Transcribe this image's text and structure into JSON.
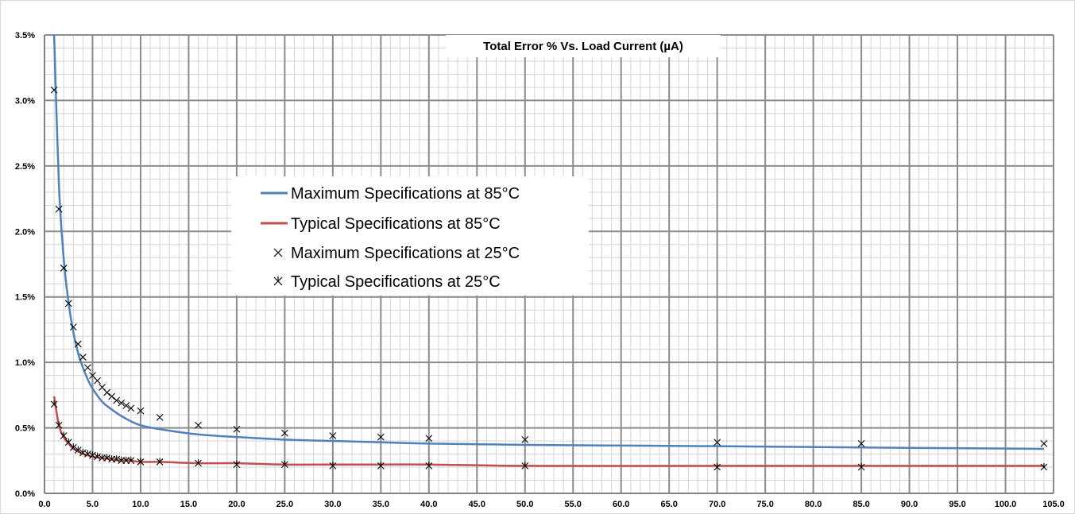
{
  "chart_data": {
    "type": "line",
    "title": "Total Error  % Vs. Load Current (µA)",
    "xlabel": "",
    "ylabel": "",
    "xlim": [
      0,
      105
    ],
    "ylim": [
      0,
      0.035
    ],
    "x_ticks": [
      0,
      5,
      10,
      15,
      20,
      25,
      30,
      35,
      40,
      45,
      50,
      55,
      60,
      65,
      70,
      75,
      80,
      85,
      90,
      95,
      100,
      105
    ],
    "x_tick_labels": [
      "0.0",
      "5.0",
      "10.0",
      "15.0",
      "20.0",
      "25.0",
      "30.0",
      "35.0",
      "40.0",
      "45.0",
      "50.0",
      "55.0",
      "60.0",
      "65.0",
      "70.0",
      "75.0",
      "80.0",
      "85.0",
      "90.0",
      "95.0",
      "100.0",
      "105.0"
    ],
    "y_ticks": [
      0,
      0.005,
      0.01,
      0.015,
      0.02,
      0.025,
      0.03,
      0.035
    ],
    "y_tick_labels": [
      "0.0%",
      "0.5%",
      "1.0%",
      "1.5%",
      "2.0%",
      "2.5%",
      "3.0%",
      "3.5%"
    ],
    "grid": true,
    "minor_grid": true,
    "legend_position": "center-left",
    "series": [
      {
        "name": "Maximum Specifications at 85°C",
        "kind": "line",
        "color": "#4f81bd",
        "x": [
          1,
          1.5,
          2,
          2.5,
          3,
          3.5,
          4,
          4.5,
          5,
          6,
          7,
          8,
          9,
          10,
          12,
          16,
          20,
          25,
          30,
          35,
          40,
          50,
          70,
          85,
          104
        ],
        "y": [
          0.035,
          0.0236,
          0.0179,
          0.0146,
          0.0123,
          0.0107,
          0.0096,
          0.0087,
          0.008,
          0.007,
          0.0064,
          0.0059,
          0.0055,
          0.0052,
          0.0049,
          0.0045,
          0.0043,
          0.0041,
          0.004,
          0.0039,
          0.0038,
          0.0037,
          0.0036,
          0.0035,
          0.0034
        ]
      },
      {
        "name": "Typical Specifications at 85°C",
        "kind": "line",
        "color": "#c0504d",
        "x": [
          1,
          1.5,
          2,
          2.5,
          3,
          3.5,
          4,
          4.5,
          5,
          6,
          7,
          8,
          9,
          10,
          12,
          16,
          20,
          25,
          30,
          35,
          40,
          50,
          70,
          85,
          104
        ],
        "y": [
          0.0074,
          0.0052,
          0.0043,
          0.0038,
          0.0034,
          0.0032,
          0.003,
          0.0029,
          0.0028,
          0.0027,
          0.0026,
          0.0025,
          0.0025,
          0.0024,
          0.0024,
          0.0023,
          0.0023,
          0.0022,
          0.0022,
          0.0022,
          0.0022,
          0.0021,
          0.0021,
          0.0021,
          0.0021
        ]
      },
      {
        "name": "Maximum Specifications at 25°C",
        "kind": "marker",
        "marker": "x",
        "color": "#000000",
        "x": [
          1,
          1.5,
          2,
          2.5,
          3,
          3.5,
          4,
          4.5,
          5,
          5.5,
          6,
          6.5,
          7,
          7.5,
          8,
          8.5,
          9,
          10,
          12,
          16,
          20,
          25,
          30,
          35,
          40,
          50,
          70,
          85,
          104
        ],
        "y": [
          0.0308,
          0.0217,
          0.0172,
          0.0145,
          0.0127,
          0.0114,
          0.0104,
          0.0096,
          0.009,
          0.0086,
          0.0081,
          0.0077,
          0.0074,
          0.0071,
          0.0069,
          0.0067,
          0.0065,
          0.0063,
          0.0058,
          0.0052,
          0.0049,
          0.0046,
          0.0044,
          0.0043,
          0.0042,
          0.0041,
          0.0039,
          0.0038,
          0.0038
        ]
      },
      {
        "name": "Typical Specifications at 25°C",
        "kind": "marker",
        "marker": "star",
        "color": "#000000",
        "x": [
          1,
          1.5,
          2,
          2.5,
          3,
          3.5,
          4,
          4.5,
          5,
          5.5,
          6,
          6.5,
          7,
          7.5,
          8,
          8.5,
          9,
          10,
          12,
          16,
          20,
          25,
          30,
          35,
          40,
          50,
          70,
          85,
          104
        ],
        "y": [
          0.0068,
          0.0052,
          0.0044,
          0.0039,
          0.0035,
          0.0033,
          0.0031,
          0.003,
          0.0029,
          0.0028,
          0.0027,
          0.0027,
          0.0026,
          0.0026,
          0.0025,
          0.0025,
          0.0025,
          0.0024,
          0.0024,
          0.0023,
          0.0022,
          0.0022,
          0.0021,
          0.0021,
          0.0021,
          0.0021,
          0.002,
          0.002,
          0.002
        ]
      }
    ]
  }
}
